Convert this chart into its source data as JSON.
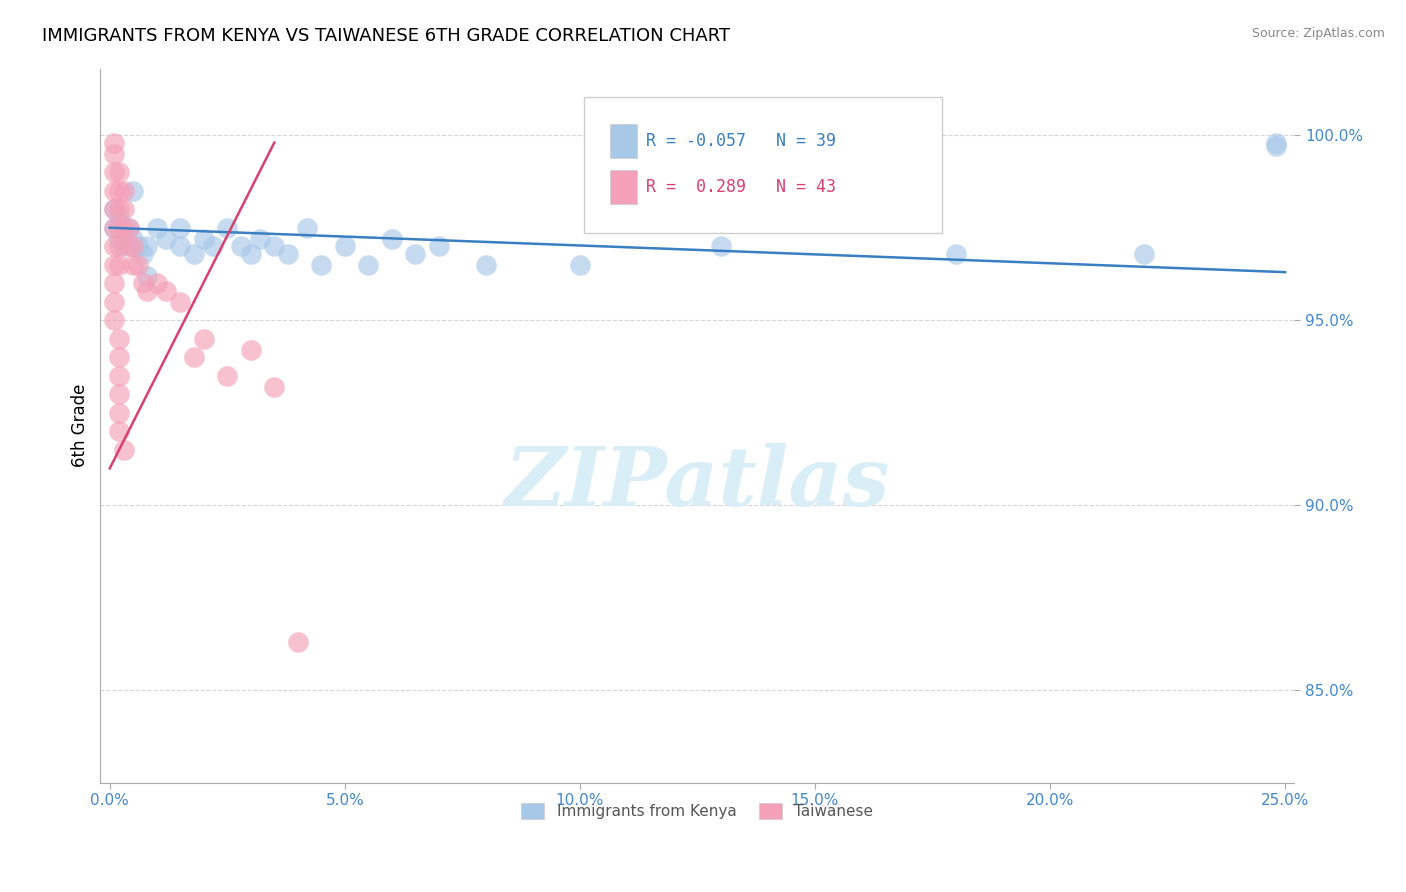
{
  "title": "IMMIGRANTS FROM KENYA VS TAIWANESE 6TH GRADE CORRELATION CHART",
  "source": "Source: ZipAtlas.com",
  "ylabel": "6th Grade",
  "legend_label1": "Immigrants from Kenya",
  "legend_label2": "Taiwanese",
  "R1": -0.057,
  "N1": 39,
  "R2": 0.289,
  "N2": 43,
  "xlim": [
    -0.002,
    0.252
  ],
  "ylim": [
    0.825,
    1.018
  ],
  "yticks": [
    0.85,
    0.9,
    0.95,
    1.0
  ],
  "xtick_vals": [
    0.0,
    0.05,
    0.1,
    0.15,
    0.2,
    0.25
  ],
  "xtick_labels": [
    "0.0%",
    "5.0%",
    "10.0%",
    "15.0%",
    "20.0%",
    "25.0%"
  ],
  "ytick_labels": [
    "85.0%",
    "90.0%",
    "95.0%",
    "100.0%"
  ],
  "color_blue": "#a8c8e8",
  "color_pink": "#f4a0b8",
  "color_blue_line": "#3a7fc1",
  "color_pink_line": "#d84070",
  "watermark_color": "#daeef8",
  "blue_x": [
    0.001,
    0.001,
    0.002,
    0.002,
    0.003,
    0.004,
    0.005,
    0.006,
    0.007,
    0.008,
    0.01,
    0.012,
    0.015,
    0.015,
    0.018,
    0.02,
    0.022,
    0.025,
    0.028,
    0.03,
    0.032,
    0.035,
    0.038,
    0.042,
    0.045,
    0.05,
    0.055,
    0.06,
    0.065,
    0.07,
    0.08,
    0.1,
    0.13,
    0.18,
    0.22,
    0.248,
    0.248,
    0.005,
    0.008
  ],
  "blue_y": [
    0.98,
    0.975,
    0.978,
    0.972,
    0.97,
    0.975,
    0.972,
    0.97,
    0.968,
    0.97,
    0.975,
    0.972,
    0.975,
    0.97,
    0.968,
    0.972,
    0.97,
    0.975,
    0.97,
    0.968,
    0.972,
    0.97,
    0.968,
    0.975,
    0.965,
    0.97,
    0.965,
    0.972,
    0.968,
    0.97,
    0.965,
    0.965,
    0.97,
    0.968,
    0.968,
    0.998,
    0.997,
    0.985,
    0.962
  ],
  "pink_x": [
    0.001,
    0.001,
    0.001,
    0.001,
    0.001,
    0.001,
    0.001,
    0.001,
    0.001,
    0.002,
    0.002,
    0.002,
    0.002,
    0.002,
    0.002,
    0.003,
    0.003,
    0.003,
    0.004,
    0.004,
    0.005,
    0.005,
    0.006,
    0.007,
    0.008,
    0.01,
    0.012,
    0.015,
    0.018,
    0.02,
    0.025,
    0.03,
    0.035,
    0.04,
    0.001,
    0.001,
    0.002,
    0.002,
    0.002,
    0.002,
    0.002,
    0.002,
    0.003
  ],
  "pink_y": [
    0.998,
    0.995,
    0.99,
    0.985,
    0.98,
    0.975,
    0.97,
    0.965,
    0.96,
    0.99,
    0.985,
    0.98,
    0.975,
    0.97,
    0.965,
    0.985,
    0.98,
    0.975,
    0.975,
    0.97,
    0.97,
    0.965,
    0.965,
    0.96,
    0.958,
    0.96,
    0.958,
    0.955,
    0.94,
    0.945,
    0.935,
    0.942,
    0.932,
    0.863,
    0.955,
    0.95,
    0.945,
    0.94,
    0.935,
    0.93,
    0.925,
    0.92,
    0.915
  ],
  "blue_line_x": [
    0.0,
    0.25
  ],
  "blue_line_y": [
    0.975,
    0.963
  ],
  "pink_line_x": [
    0.0,
    0.035
  ],
  "pink_line_y": [
    0.91,
    0.998
  ]
}
